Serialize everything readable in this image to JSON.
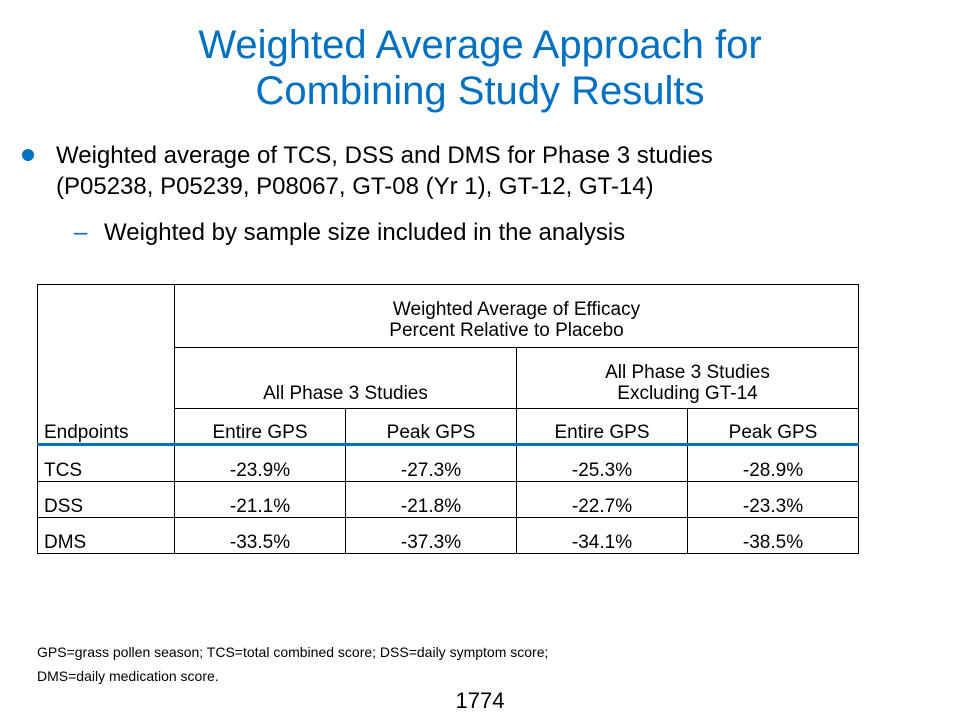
{
  "slide": {
    "title_line1": "Weighted Average Approach for",
    "title_line2": "Combining Study Results",
    "bullet1_line1": "Weighted average of TCS, DSS and DMS for Phase 3 studies",
    "bullet1_line2": "(P05238, P05239, P08067, GT-08 (Yr 1), GT-12, GT-14)",
    "bullet2_dash": "–",
    "bullet2": "Weighted by sample size included in the analysis",
    "footnote_line1": "GPS=grass pollen season; TCS=total combined score; DSS=daily symptom score;",
    "footnote_line2": "DMS=daily medication score.",
    "page_number": "1774",
    "accent_color": "#0070C0"
  },
  "table": {
    "header_main_line1": "Weighted Average of Efficacy",
    "header_main_line2": "Percent Relative to Placebo",
    "group1": "All Phase 3 Studies",
    "group2_line1": "All Phase 3 Studies",
    "group2_line2": "Excluding GT-14",
    "col0": "Endpoints",
    "col1": "Entire GPS",
    "col2": "Peak GPS",
    "col3": "Entire GPS",
    "col4": "Peak GPS",
    "rows": [
      {
        "endpoint": "TCS",
        "all_entire": "-23.9%",
        "all_peak": "-27.3%",
        "excl_entire": "-25.3%",
        "excl_peak": "-28.9%"
      },
      {
        "endpoint": "DSS",
        "all_entire": "-21.1%",
        "all_peak": "-21.8%",
        "excl_entire": "-22.7%",
        "excl_peak": "-23.3%"
      },
      {
        "endpoint": "DMS",
        "all_entire": "-33.5%",
        "all_peak": "-37.3%",
        "excl_entire": "-34.1%",
        "excl_peak": "-38.5%"
      }
    ]
  }
}
